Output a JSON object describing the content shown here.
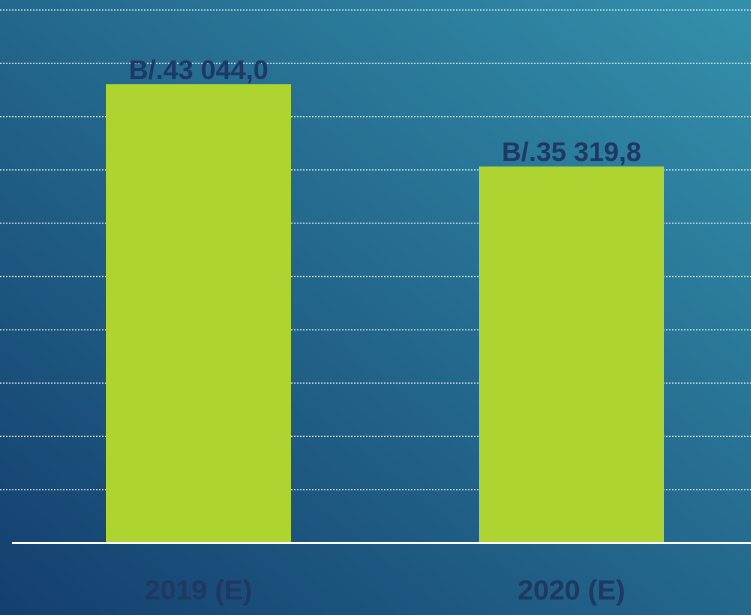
{
  "chart_data": {
    "type": "bar",
    "categories": [
      "2019 (E)",
      "2020 (E)"
    ],
    "values": [
      43044.0,
      35319.8
    ],
    "value_labels": [
      "B/.43 044,0",
      "B/.35 319,8"
    ],
    "color": "#aed432",
    "ylim": [
      0,
      50000
    ],
    "yticks": [
      0,
      5000,
      10000,
      15000,
      20000,
      25000,
      30000,
      35000,
      40000,
      45000,
      50000
    ],
    "grid": true
  }
}
